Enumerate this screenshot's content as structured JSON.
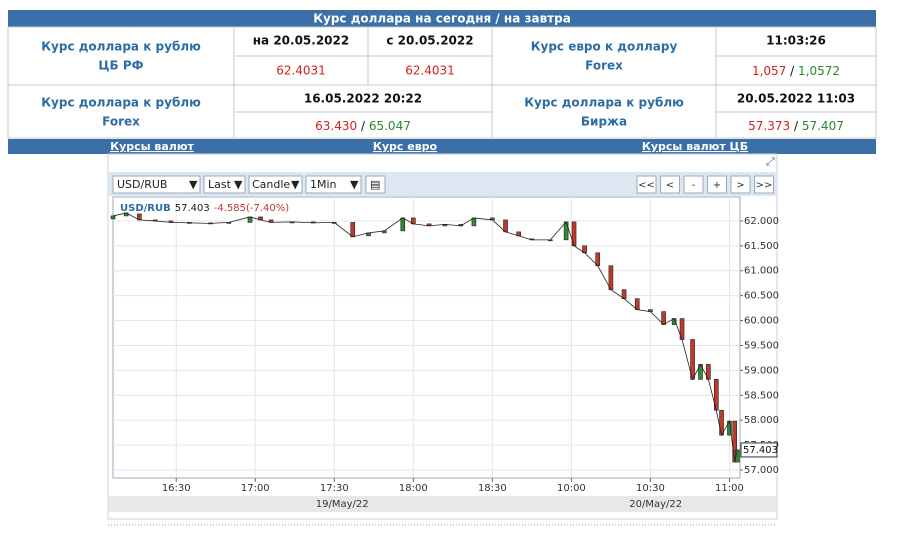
{
  "header": {
    "title": "Курс доллара на сегодня / на завтра"
  },
  "separator": "/",
  "cbr": {
    "label1": "Курс доллара к рублю",
    "label2": "ЦБ РФ",
    "today_head": "на 20.05.2022",
    "today": "62.4031",
    "tomorrow_head": "с 20.05.2022",
    "tomorrow": "62.4031"
  },
  "forex_eur": {
    "label1": "Курс евро к доллару",
    "label2": "Forex",
    "time": "11:03:26",
    "bid": "1,057",
    "ask": "1,0572"
  },
  "forex_usd": {
    "label1": "Курс доллара к рублю",
    "label2": "Forex",
    "time": "16.05.2022 20:22",
    "bid": "63.430",
    "ask": "65.047"
  },
  "exchange": {
    "label1": "Курс доллара к рублю",
    "label2": "Биржа",
    "time": "20.05.2022 11:03",
    "bid": "57.373",
    "ask": "57.407"
  },
  "links": [
    "Курсы валют",
    "Курс евро",
    "Курсы валют ЦБ"
  ],
  "toolbar": {
    "symbol": "USD/RUB",
    "price": "Last",
    "style": "Candle",
    "interval": "1Min",
    "buttons": [
      "<<",
      "<",
      "-",
      "+",
      ">",
      ">>"
    ]
  },
  "chart_data": {
    "type": "candlestick",
    "symbol": "USD/RUB",
    "last": 57.403,
    "change": "-4.585(-7.40%)",
    "up_color": "#2e8b2e",
    "down_color": "#c0392b",
    "grid": true,
    "x": [
      6,
      11,
      16,
      22,
      28,
      35,
      43,
      50,
      58,
      62,
      66,
      74,
      82,
      90,
      97,
      103,
      109,
      116,
      120,
      126,
      132,
      138,
      143,
      150,
      155,
      160,
      165,
      172,
      178,
      181,
      185,
      190,
      195,
      200,
      205,
      210,
      215,
      219,
      222,
      226,
      229,
      232,
      235,
      237,
      240,
      242,
      243
    ],
    "open": [
      62.04,
      62.1,
      62.14,
      62.02,
      62.0,
      61.97,
      61.96,
      61.95,
      61.97,
      62.08,
      62.02,
      61.97,
      61.98,
      61.96,
      61.97,
      61.7,
      61.76,
      61.8,
      62.06,
      61.94,
      61.9,
      61.93,
      61.9,
      62.06,
      62.02,
      61.78,
      61.64,
      61.62,
      61.62,
      61.98,
      61.5,
      61.36,
      61.1,
      60.62,
      60.44,
      60.22,
      60.18,
      59.92,
      60.04,
      59.62,
      58.82,
      59.12,
      58.82,
      58.2,
      57.7,
      57.98,
      57.16
    ],
    "close": [
      62.1,
      62.16,
      62.02,
      62.0,
      61.97,
      61.96,
      61.95,
      61.97,
      62.08,
      62.02,
      61.97,
      61.98,
      61.96,
      61.97,
      61.68,
      61.76,
      61.8,
      62.06,
      61.94,
      61.9,
      61.93,
      61.9,
      62.06,
      62.02,
      61.78,
      61.7,
      61.62,
      61.62,
      61.98,
      61.5,
      61.36,
      61.1,
      60.62,
      60.44,
      60.22,
      60.18,
      59.92,
      60.04,
      59.62,
      58.82,
      59.12,
      58.82,
      58.2,
      57.7,
      57.98,
      57.16,
      57.403
    ],
    "xlim": [
      6,
      244
    ],
    "xticks": [
      {
        "value": 30,
        "label": "16:30"
      },
      {
        "value": 60,
        "label": "17:00"
      },
      {
        "value": 90,
        "label": "17:30"
      },
      {
        "value": 120,
        "label": "18:00"
      },
      {
        "value": 150,
        "label": "18:30"
      },
      {
        "value": 180,
        "label": "10:00"
      },
      {
        "value": 210,
        "label": "10:30"
      },
      {
        "value": 240,
        "label": "11:00"
      }
    ],
    "dates": [
      "19/May/22",
      "20/May/22"
    ],
    "ylim": [
      56.84,
      62.48
    ],
    "yticks": [
      {
        "value": 57,
        "label": "57.000"
      },
      {
        "value": 57.5,
        "label": "57.500"
      },
      {
        "value": 58,
        "label": "58.000"
      },
      {
        "value": 58.5,
        "label": "58.500"
      },
      {
        "value": 59,
        "label": "59.000"
      },
      {
        "value": 59.5,
        "label": "59.500"
      },
      {
        "value": 60,
        "label": "60.000"
      },
      {
        "value": 60.5,
        "label": "60.500"
      },
      {
        "value": 61,
        "label": "61.000"
      },
      {
        "value": 61.5,
        "label": "61.500"
      },
      {
        "value": 62,
        "label": "62.000"
      }
    ]
  }
}
